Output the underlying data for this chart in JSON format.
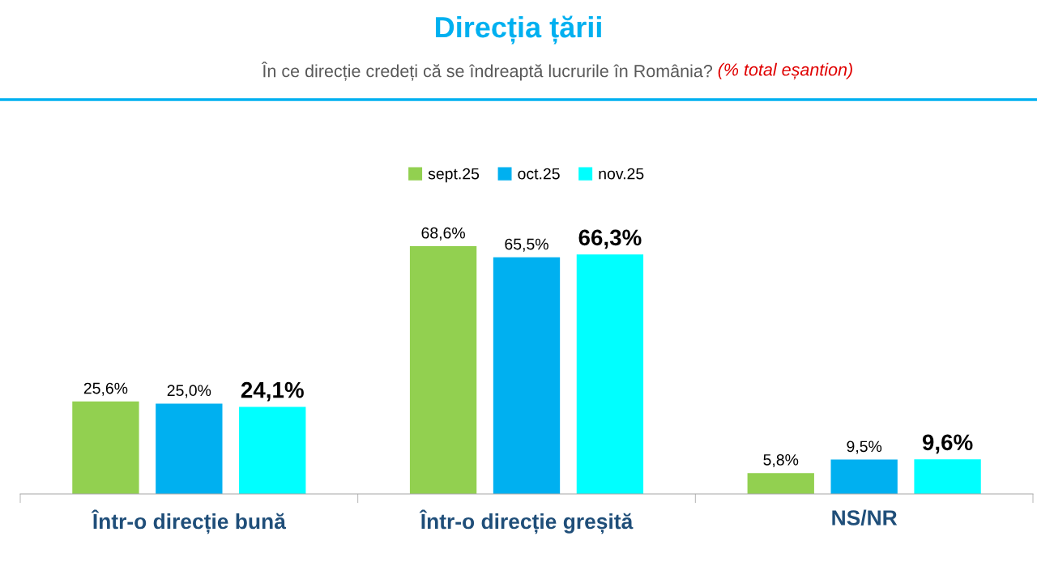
{
  "chart_data": {
    "type": "bar",
    "title": "Direcția țării",
    "subtitle": "În ce direcție credeți că se îndreaptă lucrurile în România?",
    "annotations": [
      "(% total eșantion)"
    ],
    "categories": [
      "Într-o direcție bună",
      "Într-o direcție greșită",
      "NS/NR"
    ],
    "series": [
      {
        "name": "sept.25",
        "color": "#92d050",
        "values": [
          25.6,
          68.6,
          5.8
        ],
        "value_labels": [
          "25,6%",
          "68,6%",
          "5,8%"
        ]
      },
      {
        "name": "oct.25",
        "color": "#00b0f0",
        "values": [
          25.0,
          65.5,
          9.5
        ],
        "value_labels": [
          "25,0%",
          "65,5%",
          "9,5%"
        ]
      },
      {
        "name": "nov.25",
        "color": "#00ffff",
        "values": [
          24.1,
          66.3,
          9.6
        ],
        "value_labels": [
          "24,1%",
          "66,3%",
          "9,6%"
        ]
      }
    ],
    "tick_labels": "x",
    "legend": "top",
    "grid": false
  }
}
